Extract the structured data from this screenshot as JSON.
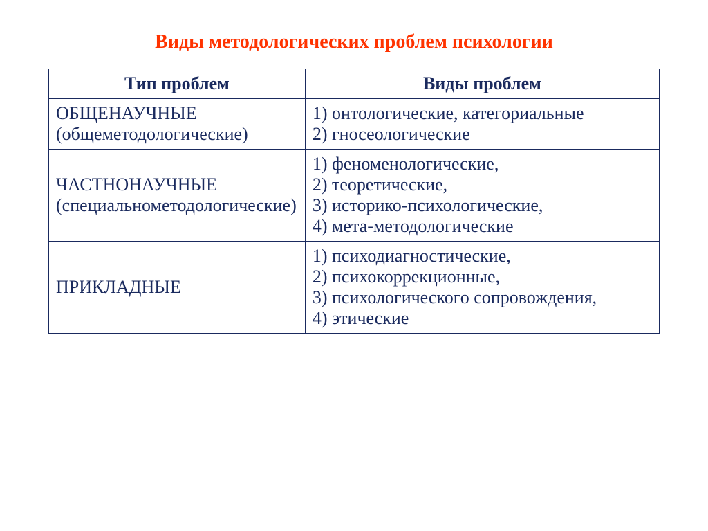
{
  "title": {
    "text": "Виды методологических проблем психологии",
    "color": "#ff3300",
    "fontsize": 28
  },
  "table": {
    "border_color": "#1a2a5e",
    "text_color": "#1a2a5e",
    "header_fontsize": 26,
    "body_fontsize": 26,
    "columns": [
      "Тип проблем",
      "Виды проблем"
    ],
    "rows": [
      {
        "type": "ОБЩЕНАУЧНЫЕ (общеметодологические)",
        "kinds": "1) онтологические, категориальные\n2) гносеологические"
      },
      {
        "type": "ЧАСТНОНАУЧНЫЕ (специальнометодологические)",
        "kinds": "1) феноменологические,\n2) теоретические,\n3) историко-психологические,\n4) мета-методологические"
      },
      {
        "type": "ПРИКЛАДНЫЕ",
        "kinds": "1) психодиагностические,\n2) психокоррекционные,\n3) психологического сопровождения,\n4) этические"
      }
    ]
  }
}
